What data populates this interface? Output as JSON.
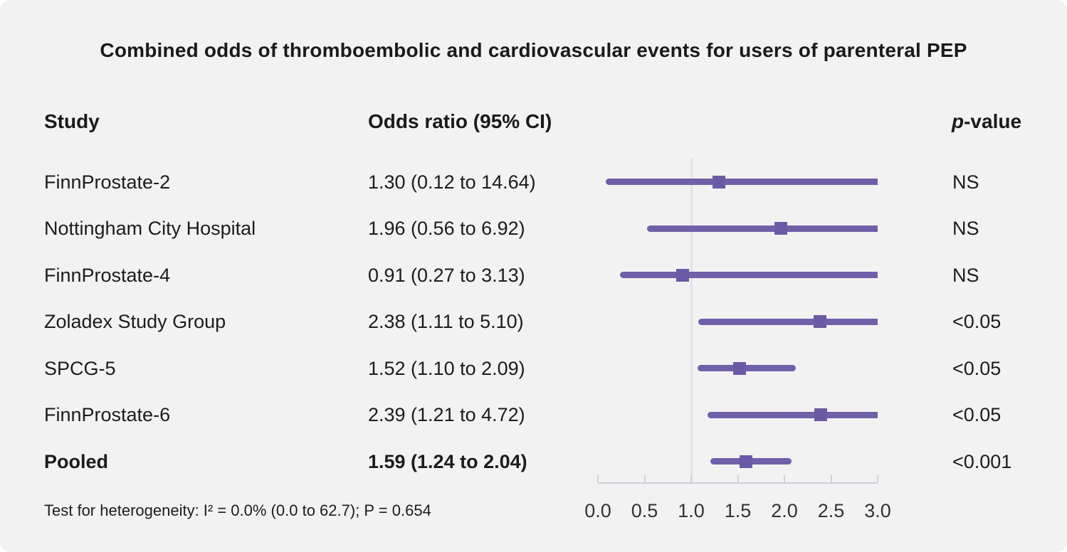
{
  "title": "Combined odds of thromboembolic and cardiovascular events for users of parenteral PEP",
  "columns": {
    "study": "Study",
    "odds_ratio": "Odds ratio (95% CI)",
    "p_italic": "p",
    "p_rest": "-value"
  },
  "footnote": "Test for heterogeneity: I² = 0.0% (0.0 to 62.7); P = 0.654",
  "colors": {
    "background": "#f2f2f2",
    "ci_line": "#6f60a9",
    "marker": "#6a5aa6",
    "reference_line": "#dfe3e8",
    "axis": "#ccd1d9",
    "text": "#1a1a1a"
  },
  "chart_data": {
    "type": "forest",
    "xlim": [
      0.0,
      3.0
    ],
    "reference_value": 1.0,
    "axis_tick_values": [
      0.0,
      0.5,
      1.0,
      1.5,
      2.0,
      2.5,
      3.0
    ],
    "axis_tick_labels": [
      "0.0",
      "0.5",
      "1.0",
      "1.5",
      "2.0",
      "2.5",
      "3.0"
    ],
    "rows": [
      {
        "study": "FinnProstate-2",
        "or_label": "1.30 (0.12 to 14.64)",
        "or": 1.3,
        "lo": 0.12,
        "hi": 14.64,
        "p": "NS",
        "bold": false
      },
      {
        "study": "Nottingham City Hospital",
        "or_label": "1.96 (0.56 to 6.92)",
        "or": 1.96,
        "lo": 0.56,
        "hi": 6.92,
        "p": "NS",
        "bold": false
      },
      {
        "study": "FinnProstate-4",
        "or_label": "0.91 (0.27 to 3.13)",
        "or": 0.91,
        "lo": 0.27,
        "hi": 3.13,
        "p": "NS",
        "bold": false
      },
      {
        "study": "Zoladex Study Group",
        "or_label": "2.38 (1.11 to 5.10)",
        "or": 2.38,
        "lo": 1.11,
        "hi": 5.1,
        "p": "<0.05",
        "bold": false
      },
      {
        "study": "SPCG-5",
        "or_label": "1.52 (1.10 to 2.09)",
        "or": 1.52,
        "lo": 1.1,
        "hi": 2.09,
        "p": "<0.05",
        "bold": false
      },
      {
        "study": "FinnProstate-6",
        "or_label": "2.39 (1.21 to 4.72)",
        "or": 2.39,
        "lo": 1.21,
        "hi": 4.72,
        "p": "<0.05",
        "bold": false
      },
      {
        "study": "Pooled",
        "or_label": "1.59 (1.24 to 2.04)",
        "or": 1.59,
        "lo": 1.24,
        "hi": 2.04,
        "p": "<0.001",
        "bold": true
      }
    ]
  }
}
